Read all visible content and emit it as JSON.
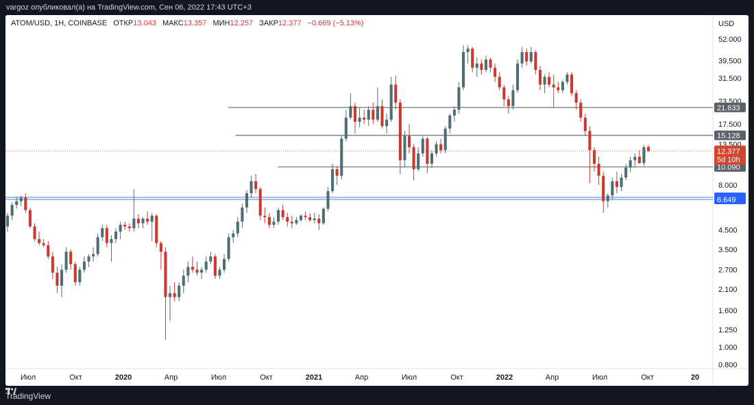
{
  "header": {
    "publisher_line": "vargoz опубликовал(а) на TradingView.com, Сен 06, 2022 17:43 UTC+3"
  },
  "legend": {
    "symbol": "ATOM/USD, 1Н, COINBASE",
    "open_label": "ОТКР",
    "open_value": "13.043",
    "high_label": "МАКС",
    "high_value": "13.357",
    "low_label": "МИН",
    "low_value": "12.257",
    "close_label": "ЗАКР",
    "close_value": "12.377",
    "change": "−0.669 (−5.13%)"
  },
  "footer": {
    "brand": "TradingView"
  },
  "colors": {
    "up": "#4e6e75",
    "down": "#c9392f",
    "hline": "#808080",
    "blue_line": "#5b8fd6",
    "price_line": "#e0824b",
    "current_tag": "#d4452f"
  },
  "chart_data": {
    "type": "candlestick",
    "scale": "log",
    "currency": "USD",
    "y_ticks": [
      0.8,
      1.0,
      1.25,
      1.6,
      2.1,
      2.7,
      3.5,
      4.5,
      8.0,
      13.5,
      17.5,
      23.5,
      31.5,
      39.5,
      52.0
    ],
    "y_tick_labels": [
      "0.800",
      "1.000",
      "1.250",
      "1.600",
      "2.100",
      "2.700",
      "3.500",
      "4.500",
      "8.000",
      "13.500",
      "17.500",
      "23.500",
      "31.500",
      "39.500",
      "52.000"
    ],
    "x_labels": [
      "Июл",
      "Окт",
      "2020",
      "Апр",
      "Июл",
      "Окт",
      "2021",
      "Апр",
      "Июл",
      "Окт",
      "2022",
      "Апр",
      "Июл",
      "Окт",
      "20"
    ],
    "x_label_positions": [
      0.5,
      0.75,
      1.0,
      1.25,
      1.5,
      1.75,
      2.0,
      2.25,
      2.5,
      2.75,
      3.0,
      3.25,
      3.5,
      3.75,
      4.0
    ],
    "levels": [
      {
        "label": "21.633",
        "value": 21.633,
        "kind": "gray",
        "start": 0.315
      },
      {
        "label": "15.128",
        "value": 15.128,
        "kind": "gray",
        "start": 0.325
      },
      {
        "label": "10.090",
        "value": 10.09,
        "kind": "gray",
        "start": 0.385
      },
      {
        "label": "6.832",
        "value": 6.832,
        "kind": "blue",
        "start": 0.0
      },
      {
        "label": "6.649",
        "value": 6.649,
        "kind": "blue",
        "start": 0.0
      }
    ],
    "current": {
      "price": 12.377,
      "label": "12.377",
      "countdown": "5d 10h"
    },
    "candles": [
      {
        "o": 4.7,
        "h": 5.6,
        "l": 4.4,
        "c": 5.4
      },
      {
        "o": 5.4,
        "h": 6.4,
        "l": 5.1,
        "c": 6.2
      },
      {
        "o": 6.2,
        "h": 6.9,
        "l": 5.9,
        "c": 6.5
      },
      {
        "o": 6.5,
        "h": 7.0,
        "l": 6.1,
        "c": 6.8
      },
      {
        "o": 6.8,
        "h": 7.2,
        "l": 5.6,
        "c": 5.8
      },
      {
        "o": 5.8,
        "h": 6.0,
        "l": 4.6,
        "c": 4.7
      },
      {
        "o": 4.7,
        "h": 4.9,
        "l": 3.9,
        "c": 4.0
      },
      {
        "o": 4.0,
        "h": 4.4,
        "l": 3.7,
        "c": 3.8
      },
      {
        "o": 3.8,
        "h": 4.0,
        "l": 3.6,
        "c": 3.7
      },
      {
        "o": 3.7,
        "h": 3.9,
        "l": 3.1,
        "c": 3.2
      },
      {
        "o": 3.2,
        "h": 3.4,
        "l": 2.4,
        "c": 2.6
      },
      {
        "o": 2.6,
        "h": 2.8,
        "l": 2.0,
        "c": 2.2
      },
      {
        "o": 2.2,
        "h": 2.9,
        "l": 1.9,
        "c": 2.7
      },
      {
        "o": 2.7,
        "h": 3.6,
        "l": 2.6,
        "c": 3.4
      },
      {
        "o": 3.4,
        "h": 3.5,
        "l": 2.7,
        "c": 2.9
      },
      {
        "o": 2.9,
        "h": 3.0,
        "l": 2.2,
        "c": 2.3
      },
      {
        "o": 2.3,
        "h": 2.8,
        "l": 2.2,
        "c": 2.7
      },
      {
        "o": 2.7,
        "h": 3.2,
        "l": 2.6,
        "c": 3.0
      },
      {
        "o": 3.0,
        "h": 3.3,
        "l": 2.8,
        "c": 3.2
      },
      {
        "o": 3.2,
        "h": 3.6,
        "l": 3.0,
        "c": 3.3
      },
      {
        "o": 3.3,
        "h": 4.3,
        "l": 3.2,
        "c": 4.1
      },
      {
        "o": 4.1,
        "h": 4.8,
        "l": 3.9,
        "c": 4.6
      },
      {
        "o": 4.6,
        "h": 4.8,
        "l": 3.6,
        "c": 3.8
      },
      {
        "o": 3.8,
        "h": 4.2,
        "l": 3.0,
        "c": 4.0
      },
      {
        "o": 4.0,
        "h": 4.6,
        "l": 3.8,
        "c": 4.4
      },
      {
        "o": 4.4,
        "h": 5.0,
        "l": 4.0,
        "c": 4.8
      },
      {
        "o": 4.8,
        "h": 5.0,
        "l": 4.5,
        "c": 4.7
      },
      {
        "o": 4.7,
        "h": 4.9,
        "l": 4.4,
        "c": 4.6
      },
      {
        "o": 4.6,
        "h": 7.6,
        "l": 4.4,
        "c": 5.2
      },
      {
        "o": 5.2,
        "h": 5.5,
        "l": 4.6,
        "c": 4.9
      },
      {
        "o": 4.9,
        "h": 5.3,
        "l": 4.6,
        "c": 5.2
      },
      {
        "o": 5.2,
        "h": 5.7,
        "l": 4.8,
        "c": 5.0
      },
      {
        "o": 5.0,
        "h": 5.6,
        "l": 3.9,
        "c": 5.4
      },
      {
        "o": 5.4,
        "h": 5.5,
        "l": 3.6,
        "c": 3.8
      },
      {
        "o": 3.8,
        "h": 3.9,
        "l": 2.7,
        "c": 3.4
      },
      {
        "o": 3.4,
        "h": 3.6,
        "l": 1.1,
        "c": 1.9
      },
      {
        "o": 1.9,
        "h": 2.2,
        "l": 1.4,
        "c": 2.0
      },
      {
        "o": 2.0,
        "h": 2.3,
        "l": 1.8,
        "c": 1.9
      },
      {
        "o": 1.9,
        "h": 2.3,
        "l": 1.8,
        "c": 2.2
      },
      {
        "o": 2.2,
        "h": 2.7,
        "l": 2.0,
        "c": 2.5
      },
      {
        "o": 2.5,
        "h": 3.0,
        "l": 2.3,
        "c": 2.8
      },
      {
        "o": 2.8,
        "h": 3.2,
        "l": 2.6,
        "c": 2.7
      },
      {
        "o": 2.7,
        "h": 3.0,
        "l": 2.5,
        "c": 2.6
      },
      {
        "o": 2.6,
        "h": 2.8,
        "l": 2.4,
        "c": 2.7
      },
      {
        "o": 2.7,
        "h": 3.2,
        "l": 2.6,
        "c": 3.0
      },
      {
        "o": 3.0,
        "h": 3.4,
        "l": 2.9,
        "c": 3.2
      },
      {
        "o": 3.2,
        "h": 3.3,
        "l": 2.4,
        "c": 2.5
      },
      {
        "o": 2.5,
        "h": 2.8,
        "l": 2.4,
        "c": 2.7
      },
      {
        "o": 2.7,
        "h": 3.3,
        "l": 2.6,
        "c": 3.1
      },
      {
        "o": 3.1,
        "h": 4.3,
        "l": 3.0,
        "c": 4.1
      },
      {
        "o": 4.1,
        "h": 4.5,
        "l": 3.8,
        "c": 4.3
      },
      {
        "o": 4.3,
        "h": 5.3,
        "l": 4.1,
        "c": 5.0
      },
      {
        "o": 5.0,
        "h": 6.3,
        "l": 4.6,
        "c": 6.0
      },
      {
        "o": 6.0,
        "h": 7.5,
        "l": 5.6,
        "c": 7.2
      },
      {
        "o": 7.2,
        "h": 9.0,
        "l": 6.8,
        "c": 8.4
      },
      {
        "o": 8.4,
        "h": 9.2,
        "l": 7.2,
        "c": 7.6
      },
      {
        "o": 7.6,
        "h": 7.8,
        "l": 5.1,
        "c": 5.4
      },
      {
        "o": 5.4,
        "h": 6.0,
        "l": 4.9,
        "c": 5.3
      },
      {
        "o": 5.3,
        "h": 5.6,
        "l": 4.6,
        "c": 4.8
      },
      {
        "o": 4.8,
        "h": 5.3,
        "l": 4.6,
        "c": 5.0
      },
      {
        "o": 5.0,
        "h": 6.0,
        "l": 4.8,
        "c": 5.8
      },
      {
        "o": 5.8,
        "h": 6.2,
        "l": 5.1,
        "c": 5.3
      },
      {
        "o": 5.3,
        "h": 5.6,
        "l": 4.7,
        "c": 5.0
      },
      {
        "o": 5.0,
        "h": 5.4,
        "l": 4.6,
        "c": 4.9
      },
      {
        "o": 4.9,
        "h": 5.3,
        "l": 4.8,
        "c": 5.1
      },
      {
        "o": 5.1,
        "h": 5.5,
        "l": 5.0,
        "c": 5.4
      },
      {
        "o": 5.4,
        "h": 5.7,
        "l": 5.1,
        "c": 5.3
      },
      {
        "o": 5.3,
        "h": 5.6,
        "l": 5.0,
        "c": 5.1
      },
      {
        "o": 5.1,
        "h": 5.6,
        "l": 4.9,
        "c": 5.2
      },
      {
        "o": 5.2,
        "h": 5.5,
        "l": 4.5,
        "c": 4.9
      },
      {
        "o": 4.9,
        "h": 6.0,
        "l": 4.8,
        "c": 5.9
      },
      {
        "o": 5.9,
        "h": 7.8,
        "l": 5.7,
        "c": 7.4
      },
      {
        "o": 7.4,
        "h": 10.5,
        "l": 7.2,
        "c": 9.8
      },
      {
        "o": 9.8,
        "h": 10.2,
        "l": 8.0,
        "c": 9.0
      },
      {
        "o": 9.0,
        "h": 15.0,
        "l": 8.6,
        "c": 14.5
      },
      {
        "o": 14.5,
        "h": 21.0,
        "l": 14.0,
        "c": 19.0
      },
      {
        "o": 19.0,
        "h": 26.0,
        "l": 18.5,
        "c": 22.0
      },
      {
        "o": 22.0,
        "h": 23.0,
        "l": 15.5,
        "c": 18.0
      },
      {
        "o": 18.0,
        "h": 21.5,
        "l": 16.8,
        "c": 19.0
      },
      {
        "o": 19.0,
        "h": 21.0,
        "l": 17.5,
        "c": 18.5
      },
      {
        "o": 18.5,
        "h": 22.0,
        "l": 17.0,
        "c": 21.0
      },
      {
        "o": 21.0,
        "h": 23.0,
        "l": 17.5,
        "c": 18.5
      },
      {
        "o": 18.5,
        "h": 28.0,
        "l": 18.0,
        "c": 22.0
      },
      {
        "o": 22.0,
        "h": 24.0,
        "l": 16.5,
        "c": 17.0
      },
      {
        "o": 17.0,
        "h": 20.0,
        "l": 15.5,
        "c": 18.5
      },
      {
        "o": 18.5,
        "h": 32.0,
        "l": 18.0,
        "c": 29.0
      },
      {
        "o": 29.0,
        "h": 32.5,
        "l": 21.0,
        "c": 23.0
      },
      {
        "o": 23.0,
        "h": 24.0,
        "l": 9.2,
        "c": 11.0
      },
      {
        "o": 11.0,
        "h": 16.0,
        "l": 10.0,
        "c": 15.0
      },
      {
        "o": 15.0,
        "h": 17.5,
        "l": 12.0,
        "c": 13.0
      },
      {
        "o": 13.0,
        "h": 13.5,
        "l": 8.5,
        "c": 9.8
      },
      {
        "o": 9.8,
        "h": 13.0,
        "l": 9.5,
        "c": 12.0
      },
      {
        "o": 12.0,
        "h": 15.0,
        "l": 11.5,
        "c": 14.5
      },
      {
        "o": 14.5,
        "h": 14.8,
        "l": 9.3,
        "c": 10.5
      },
      {
        "o": 10.5,
        "h": 12.5,
        "l": 10.0,
        "c": 12.0
      },
      {
        "o": 12.0,
        "h": 14.0,
        "l": 11.5,
        "c": 13.5
      },
      {
        "o": 13.5,
        "h": 14.5,
        "l": 12.0,
        "c": 12.5
      },
      {
        "o": 12.5,
        "h": 17.0,
        "l": 12.0,
        "c": 16.5
      },
      {
        "o": 16.5,
        "h": 20.0,
        "l": 15.5,
        "c": 19.5
      },
      {
        "o": 19.5,
        "h": 22.0,
        "l": 18.0,
        "c": 21.0
      },
      {
        "o": 21.0,
        "h": 30.0,
        "l": 20.0,
        "c": 28.0
      },
      {
        "o": 28.0,
        "h": 48.0,
        "l": 27.0,
        "c": 44.0
      },
      {
        "o": 44.0,
        "h": 48.0,
        "l": 38.0,
        "c": 46.0
      },
      {
        "o": 46.0,
        "h": 47.0,
        "l": 34.0,
        "c": 36.0
      },
      {
        "o": 36.0,
        "h": 41.0,
        "l": 32.0,
        "c": 38.0
      },
      {
        "o": 38.0,
        "h": 40.0,
        "l": 33.0,
        "c": 35.0
      },
      {
        "o": 35.0,
        "h": 42.0,
        "l": 34.0,
        "c": 40.0
      },
      {
        "o": 40.0,
        "h": 41.0,
        "l": 34.0,
        "c": 36.0
      },
      {
        "o": 36.0,
        "h": 38.0,
        "l": 30.0,
        "c": 32.0
      },
      {
        "o": 32.0,
        "h": 34.0,
        "l": 27.0,
        "c": 28.0
      },
      {
        "o": 28.0,
        "h": 29.0,
        "l": 22.0,
        "c": 24.0
      },
      {
        "o": 24.0,
        "h": 25.0,
        "l": 20.0,
        "c": 22.0
      },
      {
        "o": 22.0,
        "h": 29.0,
        "l": 21.0,
        "c": 27.0
      },
      {
        "o": 27.0,
        "h": 40.0,
        "l": 26.0,
        "c": 38.0
      },
      {
        "o": 38.0,
        "h": 47.0,
        "l": 36.0,
        "c": 44.0
      },
      {
        "o": 44.0,
        "h": 46.0,
        "l": 37.0,
        "c": 39.0
      },
      {
        "o": 39.0,
        "h": 47.0,
        "l": 38.0,
        "c": 44.0
      },
      {
        "o": 44.0,
        "h": 45.0,
        "l": 33.0,
        "c": 35.0
      },
      {
        "o": 35.0,
        "h": 37.0,
        "l": 27.0,
        "c": 29.0
      },
      {
        "o": 29.0,
        "h": 33.0,
        "l": 26.0,
        "c": 32.0
      },
      {
        "o": 32.0,
        "h": 34.0,
        "l": 28.0,
        "c": 29.0
      },
      {
        "o": 29.0,
        "h": 33.0,
        "l": 21.5,
        "c": 28.0
      },
      {
        "o": 28.0,
        "h": 30.0,
        "l": 26.0,
        "c": 27.0
      },
      {
        "o": 27.0,
        "h": 31.0,
        "l": 26.0,
        "c": 30.0
      },
      {
        "o": 30.0,
        "h": 34.0,
        "l": 29.0,
        "c": 33.0
      },
      {
        "o": 33.0,
        "h": 34.0,
        "l": 25.0,
        "c": 26.0
      },
      {
        "o": 26.0,
        "h": 27.0,
        "l": 21.0,
        "c": 23.0
      },
      {
        "o": 23.0,
        "h": 24.0,
        "l": 18.0,
        "c": 19.0
      },
      {
        "o": 19.0,
        "h": 20.0,
        "l": 15.0,
        "c": 16.0
      },
      {
        "o": 16.0,
        "h": 17.0,
        "l": 8.2,
        "c": 12.5
      },
      {
        "o": 12.5,
        "h": 13.0,
        "l": 9.5,
        "c": 10.5
      },
      {
        "o": 10.5,
        "h": 11.5,
        "l": 8.0,
        "c": 9.0
      },
      {
        "o": 9.0,
        "h": 9.5,
        "l": 5.6,
        "c": 6.5
      },
      {
        "o": 6.5,
        "h": 7.2,
        "l": 6.0,
        "c": 7.0
      },
      {
        "o": 7.0,
        "h": 8.8,
        "l": 6.6,
        "c": 8.4
      },
      {
        "o": 8.4,
        "h": 9.5,
        "l": 7.2,
        "c": 7.8
      },
      {
        "o": 7.8,
        "h": 9.2,
        "l": 7.4,
        "c": 8.8
      },
      {
        "o": 8.8,
        "h": 10.5,
        "l": 8.5,
        "c": 10.0
      },
      {
        "o": 10.0,
        "h": 11.5,
        "l": 9.4,
        "c": 11.0
      },
      {
        "o": 11.0,
        "h": 12.0,
        "l": 10.0,
        "c": 11.5
      },
      {
        "o": 11.5,
        "h": 12.5,
        "l": 10.5,
        "c": 10.6
      },
      {
        "o": 10.6,
        "h": 13.4,
        "l": 10.2,
        "c": 13.0
      },
      {
        "o": 13.043,
        "h": 13.357,
        "l": 12.257,
        "c": 12.377
      }
    ]
  }
}
